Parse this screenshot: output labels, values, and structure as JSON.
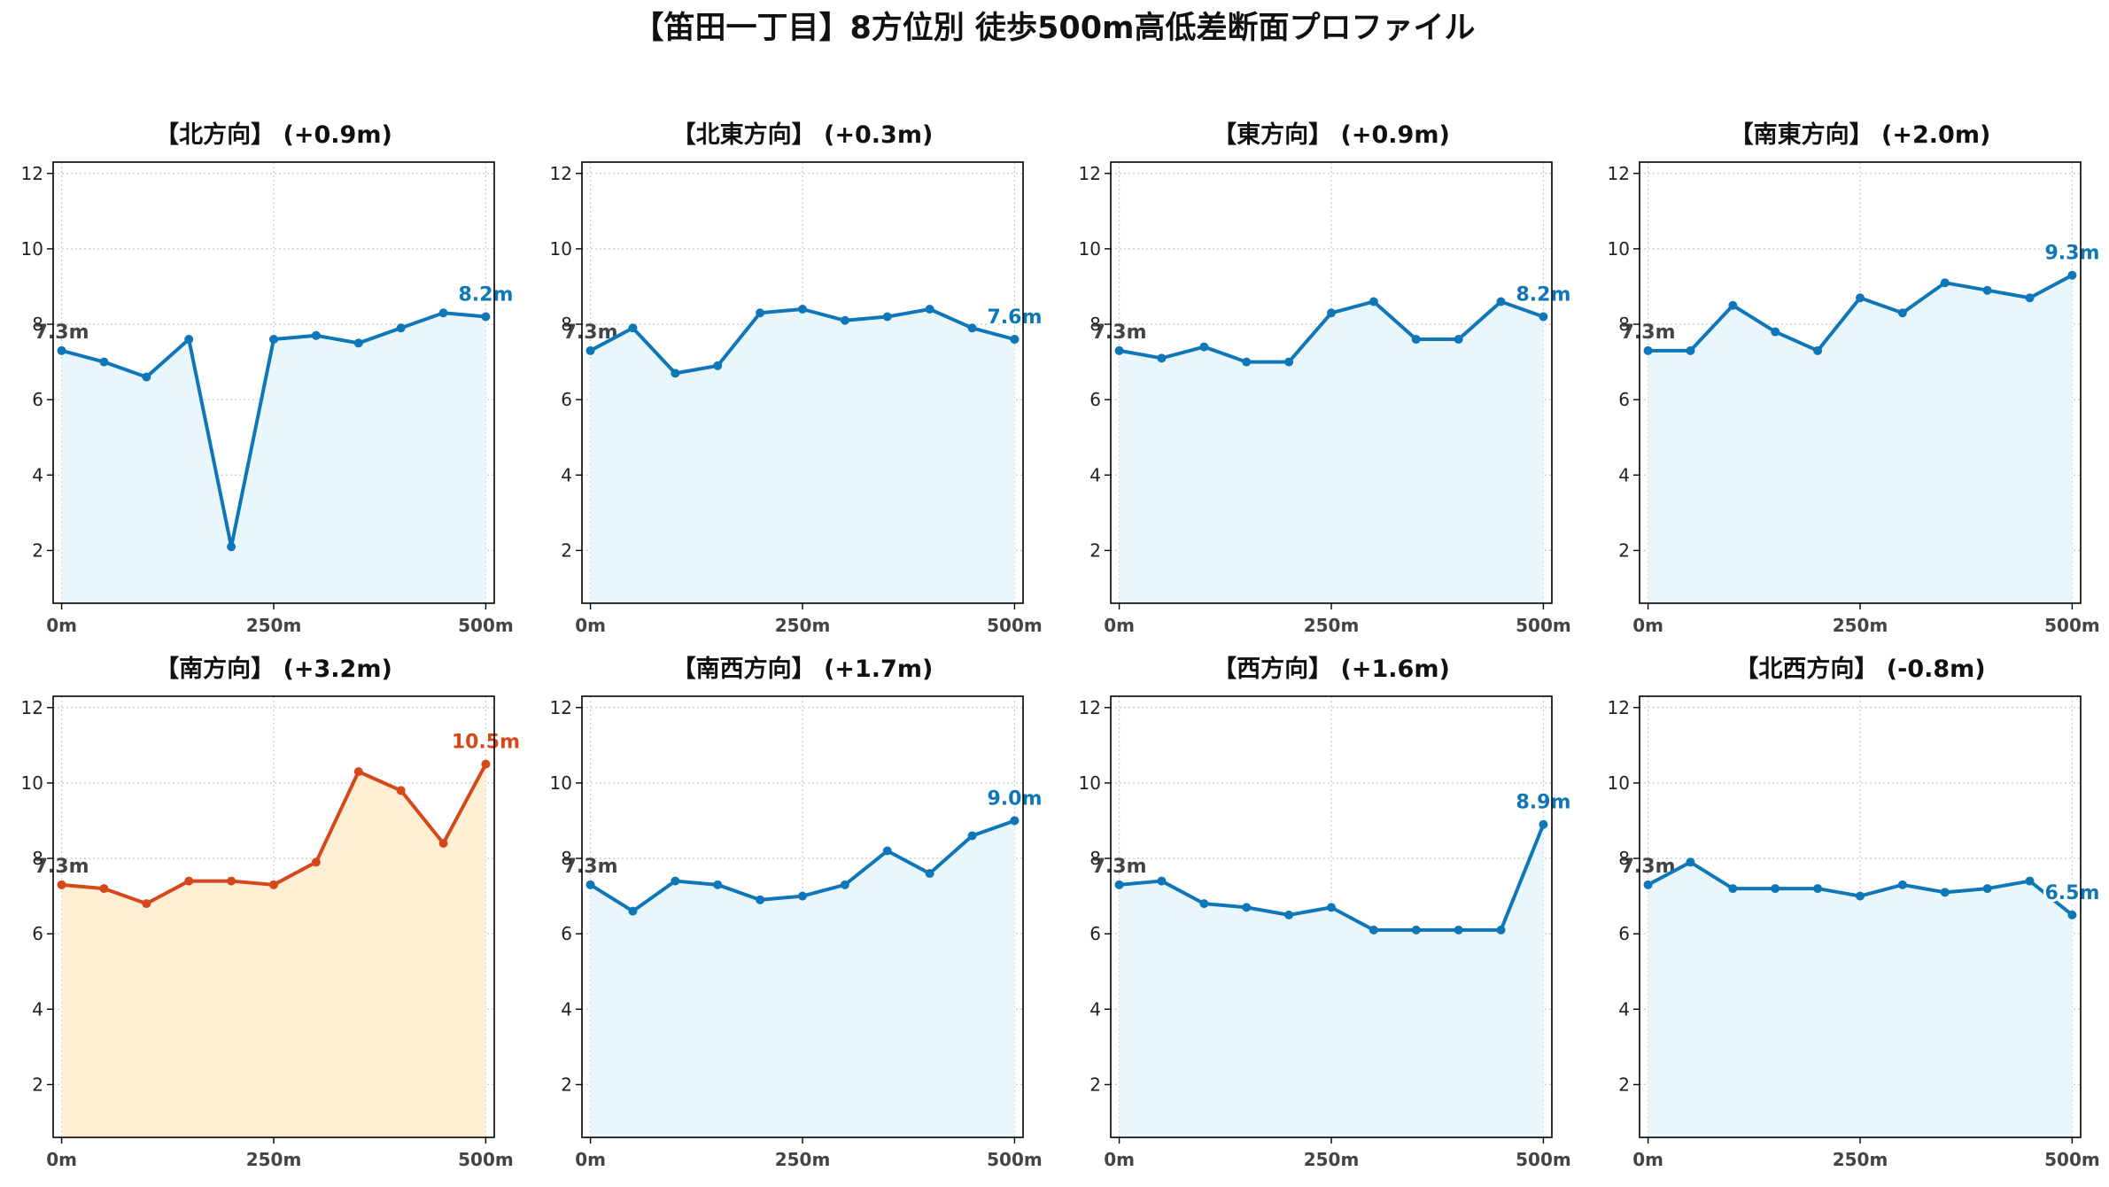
{
  "figure": {
    "title": "【笛田一丁目】8方位別 徒歩500m高低差断面プロファイル"
  },
  "chart_data": [
    {
      "type": "area",
      "title": "【北方向】 (+0.9m)",
      "highlight": false,
      "x": [
        0,
        50,
        100,
        150,
        200,
        250,
        300,
        350,
        400,
        450,
        500
      ],
      "y": [
        7.3,
        7.0,
        6.6,
        7.6,
        2.1,
        7.6,
        7.7,
        7.5,
        7.9,
        8.3,
        8.2
      ],
      "start_label": "7.3m",
      "end_label": "8.2m",
      "xticks": [
        "0m",
        "250m",
        "500m"
      ],
      "yticks": [
        "2",
        "4",
        "6",
        "8",
        "10",
        "12"
      ],
      "xlim": [
        -10,
        510
      ],
      "ylim": [
        0.6,
        12.3
      ],
      "grid": true
    },
    {
      "type": "area",
      "title": "【北東方向】 (+0.3m)",
      "highlight": false,
      "x": [
        0,
        50,
        100,
        150,
        200,
        250,
        300,
        350,
        400,
        450,
        500
      ],
      "y": [
        7.3,
        7.9,
        6.7,
        6.9,
        8.3,
        8.4,
        8.1,
        8.2,
        8.4,
        7.9,
        7.6
      ],
      "start_label": "7.3m",
      "end_label": "7.6m",
      "xticks": [
        "0m",
        "250m",
        "500m"
      ],
      "yticks": [
        "2",
        "4",
        "6",
        "8",
        "10",
        "12"
      ],
      "xlim": [
        -10,
        510
      ],
      "ylim": [
        0.6,
        12.3
      ],
      "grid": true
    },
    {
      "type": "area",
      "title": "【東方向】 (+0.9m)",
      "highlight": false,
      "x": [
        0,
        50,
        100,
        150,
        200,
        250,
        300,
        350,
        400,
        450,
        500
      ],
      "y": [
        7.3,
        7.1,
        7.4,
        7.0,
        7.0,
        8.3,
        8.6,
        7.6,
        7.6,
        8.6,
        8.2
      ],
      "start_label": "7.3m",
      "end_label": "8.2m",
      "xticks": [
        "0m",
        "250m",
        "500m"
      ],
      "yticks": [
        "2",
        "4",
        "6",
        "8",
        "10",
        "12"
      ],
      "xlim": [
        -10,
        510
      ],
      "ylim": [
        0.6,
        12.3
      ],
      "grid": true
    },
    {
      "type": "area",
      "title": "【南東方向】 (+2.0m)",
      "highlight": false,
      "x": [
        0,
        50,
        100,
        150,
        200,
        250,
        300,
        350,
        400,
        450,
        500
      ],
      "y": [
        7.3,
        7.3,
        8.5,
        7.8,
        7.3,
        8.7,
        8.3,
        9.1,
        8.9,
        8.7,
        9.3
      ],
      "start_label": "7.3m",
      "end_label": "9.3m",
      "xticks": [
        "0m",
        "250m",
        "500m"
      ],
      "yticks": [
        "2",
        "4",
        "6",
        "8",
        "10",
        "12"
      ],
      "xlim": [
        -10,
        510
      ],
      "ylim": [
        0.6,
        12.3
      ],
      "grid": true
    },
    {
      "type": "area",
      "title": "【南方向】 (+3.2m)",
      "highlight": true,
      "x": [
        0,
        50,
        100,
        150,
        200,
        250,
        300,
        350,
        400,
        450,
        500
      ],
      "y": [
        7.3,
        7.2,
        6.8,
        7.4,
        7.4,
        7.3,
        7.9,
        10.3,
        9.8,
        8.4,
        10.5
      ],
      "start_label": "7.3m",
      "end_label": "10.5m",
      "xticks": [
        "0m",
        "250m",
        "500m"
      ],
      "yticks": [
        "2",
        "4",
        "6",
        "8",
        "10",
        "12"
      ],
      "xlim": [
        -10,
        510
      ],
      "ylim": [
        0.6,
        12.3
      ],
      "grid": true
    },
    {
      "type": "area",
      "title": "【南西方向】 (+1.7m)",
      "highlight": false,
      "x": [
        0,
        50,
        100,
        150,
        200,
        250,
        300,
        350,
        400,
        450,
        500
      ],
      "y": [
        7.3,
        6.6,
        7.4,
        7.3,
        6.9,
        7.0,
        7.3,
        8.2,
        7.6,
        8.6,
        9.0
      ],
      "start_label": "7.3m",
      "end_label": "9.0m",
      "xticks": [
        "0m",
        "250m",
        "500m"
      ],
      "yticks": [
        "2",
        "4",
        "6",
        "8",
        "10",
        "12"
      ],
      "xlim": [
        -10,
        510
      ],
      "ylim": [
        0.6,
        12.3
      ],
      "grid": true
    },
    {
      "type": "area",
      "title": "【西方向】 (+1.6m)",
      "highlight": false,
      "x": [
        0,
        50,
        100,
        150,
        200,
        250,
        300,
        350,
        400,
        450,
        500
      ],
      "y": [
        7.3,
        7.4,
        6.8,
        6.7,
        6.5,
        6.7,
        6.1,
        6.1,
        6.1,
        6.1,
        8.9
      ],
      "start_label": "7.3m",
      "end_label": "8.9m",
      "xticks": [
        "0m",
        "250m",
        "500m"
      ],
      "yticks": [
        "2",
        "4",
        "6",
        "8",
        "10",
        "12"
      ],
      "xlim": [
        -10,
        510
      ],
      "ylim": [
        0.6,
        12.3
      ],
      "grid": true
    },
    {
      "type": "area",
      "title": "【北西方向】 (-0.8m)",
      "highlight": false,
      "x": [
        0,
        50,
        100,
        150,
        200,
        250,
        300,
        350,
        400,
        450,
        500
      ],
      "y": [
        7.3,
        7.9,
        7.2,
        7.2,
        7.2,
        7.0,
        7.3,
        7.1,
        7.2,
        7.4,
        6.5
      ],
      "start_label": "7.3m",
      "end_label": "6.5m",
      "xticks": [
        "0m",
        "250m",
        "500m"
      ],
      "yticks": [
        "2",
        "4",
        "6",
        "8",
        "10",
        "12"
      ],
      "xlim": [
        -10,
        510
      ],
      "ylim": [
        0.6,
        12.3
      ],
      "grid": true
    }
  ],
  "colors": {
    "normal_line": "#0f77b8",
    "normal_fill": "#e9f6fb",
    "highlight_line": "#d4481c",
    "highlight_fill": "#feefd4",
    "start_label": "#444444",
    "grid": "#c8c8c8",
    "axis": "#000000"
  }
}
